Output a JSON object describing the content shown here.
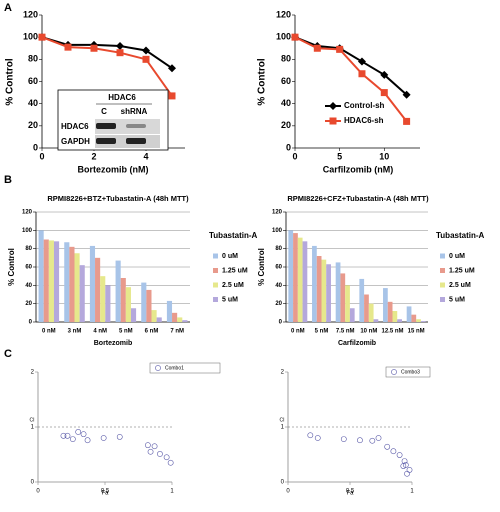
{
  "panel_labels": [
    "A",
    "B",
    "C"
  ],
  "blot": {
    "title": "HDAC6",
    "columns": [
      "C",
      "shRNA"
    ],
    "rows": [
      "HDAC6",
      "GAPDH"
    ]
  },
  "chart_data": [
    {
      "type": "line",
      "x_label": "Bortezomib (nM)",
      "y_label": "% Control",
      "x": [
        0,
        1,
        2,
        3,
        4,
        5
      ],
      "xlim": [
        0,
        5.5
      ],
      "xticks": [
        0,
        2,
        4
      ],
      "ylim": [
        0,
        120
      ],
      "yticks": [
        0,
        20,
        40,
        60,
        80,
        100,
        120
      ],
      "series": [
        {
          "color": "#000000",
          "marker": "diamond",
          "values": [
            100,
            93,
            93,
            92,
            88,
            72
          ]
        },
        {
          "color": "#e8492e",
          "marker": "square",
          "values": [
            100,
            91,
            90,
            86,
            80,
            47
          ]
        }
      ]
    },
    {
      "type": "line",
      "x_label": "Carfilzomib (nM)",
      "y_label": "% Control",
      "x": [
        0,
        2.5,
        5,
        7.5,
        10,
        12.5
      ],
      "xlim": [
        0,
        14
      ],
      "xticks": [
        0,
        5,
        10
      ],
      "ylim": [
        0,
        120
      ],
      "yticks": [
        0,
        20,
        40,
        60,
        80,
        100,
        120
      ],
      "series": [
        {
          "name": "Control-sh",
          "color": "#000000",
          "marker": "diamond",
          "values": [
            100,
            92,
            90,
            78,
            66,
            48
          ]
        },
        {
          "name": "HDAC6-sh",
          "color": "#e8492e",
          "marker": "square",
          "values": [
            100,
            90,
            89,
            67,
            50,
            24
          ]
        }
      ]
    },
    {
      "type": "bar",
      "title": "RPMI8226+BTZ+Tubastatin-A (48h MTT)",
      "x_label": "Bortezomib",
      "y_label": "% Control",
      "legend_title": "Tubastatin-A",
      "grid": true,
      "categories": [
        "0 nM",
        "3 nM",
        "4 nM",
        "5 nM",
        "6 nM",
        "7 nM"
      ],
      "ylim": [
        0,
        120
      ],
      "yticks": [
        0,
        20,
        40,
        60,
        80,
        100,
        120
      ],
      "series": [
        {
          "name": "0 uM",
          "color": "#a8c4e8",
          "values": [
            100,
            87,
            83,
            67,
            43,
            23
          ]
        },
        {
          "name": "1.25 uM",
          "color": "#e89a8c",
          "values": [
            90,
            82,
            70,
            48,
            35,
            10
          ]
        },
        {
          "name": "2.5 uM",
          "color": "#e6e88c",
          "values": [
            89,
            75,
            50,
            38,
            13,
            5
          ]
        },
        {
          "name": "5 uM",
          "color": "#b4a8dc",
          "values": [
            88,
            62,
            40,
            15,
            5,
            2
          ]
        }
      ]
    },
    {
      "type": "bar",
      "title": "RPMI8226+CFZ+Tubastatin-A (48h MTT)",
      "x_label": "Carfilzomib",
      "y_label": "% Control",
      "legend_title": "Tubastatin-A",
      "grid": true,
      "categories": [
        "0 nM",
        "5 nM",
        "7.5 nM",
        "10 nM",
        "12.5 nM",
        "15 nM"
      ],
      "ylim": [
        0,
        120
      ],
      "yticks": [
        0,
        20,
        40,
        60,
        80,
        100,
        120
      ],
      "series": [
        {
          "name": "0 uM",
          "color": "#a8c4e8",
          "values": [
            100,
            83,
            65,
            47,
            37,
            17
          ]
        },
        {
          "name": "1.25 uM",
          "color": "#e89a8c",
          "values": [
            97,
            72,
            53,
            30,
            22,
            8
          ]
        },
        {
          "name": "2.5 uM",
          "color": "#e6e88c",
          "values": [
            92,
            68,
            40,
            20,
            12,
            3
          ]
        },
        {
          "name": "5 uM",
          "color": "#b4a8dc",
          "values": [
            88,
            63,
            15,
            3,
            3,
            1
          ]
        }
      ]
    },
    {
      "type": "scatter",
      "x_label": "Fa",
      "y_label": "CI",
      "xlim": [
        0,
        1
      ],
      "xticks": [
        0,
        0.5,
        1
      ],
      "ylim": [
        0,
        2
      ],
      "yticks": [
        0,
        1,
        2
      ],
      "hline": 1,
      "series": [
        {
          "name": "Combo1",
          "color": "#5a5aa8",
          "x": [
            0.19,
            0.22,
            0.26,
            0.3,
            0.34,
            0.37,
            0.49,
            0.61,
            0.82,
            0.87,
            0.84,
            0.91,
            0.96,
            0.99
          ],
          "values": [
            0.84,
            0.84,
            0.78,
            0.91,
            0.87,
            0.76,
            0.8,
            0.82,
            0.67,
            0.65,
            0.55,
            0.51,
            0.45,
            0.35
          ]
        }
      ]
    },
    {
      "type": "scatter",
      "x_label": "Fa",
      "y_label": "CI",
      "xlim": [
        0,
        1
      ],
      "xticks": [
        0,
        0.5,
        1
      ],
      "ylim": [
        0,
        2
      ],
      "yticks": [
        0,
        1,
        2
      ],
      "hline": 1,
      "series": [
        {
          "name": "Combo3",
          "color": "#5a5aa8",
          "x": [
            0.18,
            0.24,
            0.45,
            0.58,
            0.68,
            0.73,
            0.8,
            0.85,
            0.9,
            0.94,
            0.95,
            0.98,
            0.96,
            0.93
          ],
          "values": [
            0.85,
            0.8,
            0.78,
            0.76,
            0.75,
            0.8,
            0.64,
            0.56,
            0.49,
            0.38,
            0.31,
            0.22,
            0.15,
            0.29
          ]
        }
      ]
    }
  ]
}
